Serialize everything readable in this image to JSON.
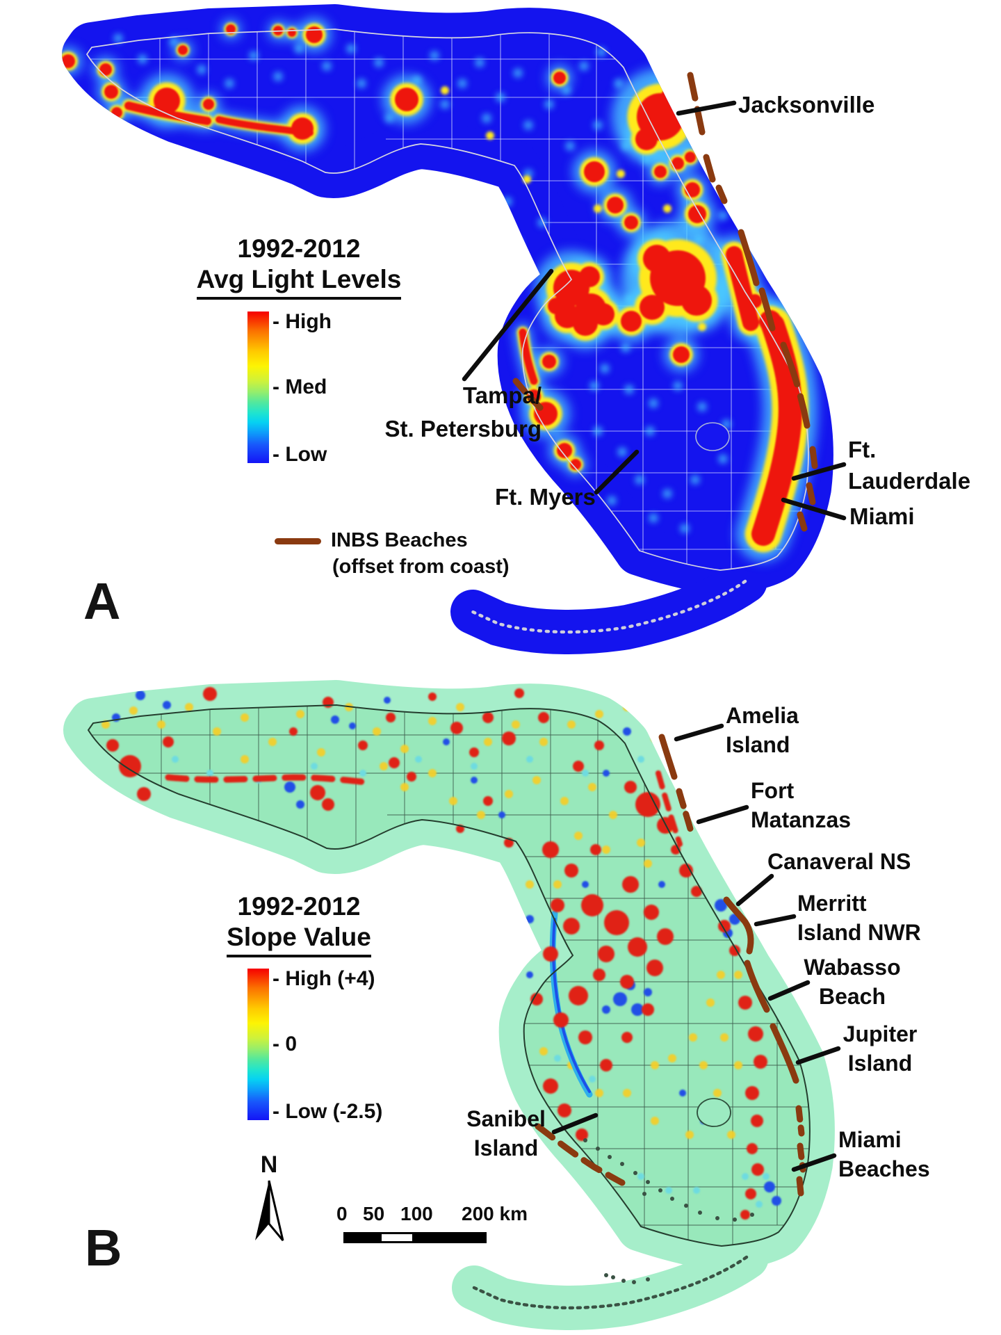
{
  "panel_a": {
    "letter": "A",
    "legend": {
      "title_line1": "1992-2012",
      "title_line2": "Avg Light Levels",
      "tick_high": "- High",
      "tick_med": "- Med",
      "tick_low": "- Low",
      "inbs_line1": "INBS Beaches",
      "inbs_line2": "(offset from coast)"
    },
    "labels": {
      "jacksonville": "Jacksonville",
      "tampa_line1": "Tampa/",
      "tampa_line2": "St. Petersburg",
      "ft_myers": "Ft. Myers",
      "ft_lauderdale_line1": "Ft.",
      "ft_lauderdale_line2": "Lauderdale",
      "miami": "Miami"
    },
    "colors": {
      "high_red": "#ee1411",
      "low_blue": "#1414ee",
      "inbs_brown": "#8a3a10"
    }
  },
  "panel_b": {
    "letter": "B",
    "legend": {
      "title_line1": "1992-2012",
      "title_line2": "Slope Value",
      "tick_high": "- High (+4)",
      "tick_mid": "- 0",
      "tick_low": "- Low (-2.5)"
    },
    "labels": {
      "amelia_line1": "Amelia",
      "amelia_line2": "Island",
      "matanzas_line1": "Fort",
      "matanzas_line2": "Matanzas",
      "canaveral": "Canaveral NS",
      "merritt_line1": "Merritt",
      "merritt_line2": "Island NWR",
      "wabasso_line1": "Wabasso",
      "wabasso_line2": "Beach",
      "jupiter_line1": "Jupiter",
      "jupiter_line2": "Island",
      "sanibel_line1": "Sanibel",
      "sanibel_line2": "Island",
      "miami_line1": "Miami",
      "miami_line2": "Beaches"
    },
    "north_label": "N",
    "scalebar": {
      "tick_0": "0",
      "tick_50": "50",
      "tick_100": "100",
      "tick_200": "200 km"
    },
    "colors": {
      "background_green": "#9ceac1",
      "positive_red": "#e02313",
      "negative_blue": "#2050e6"
    }
  }
}
